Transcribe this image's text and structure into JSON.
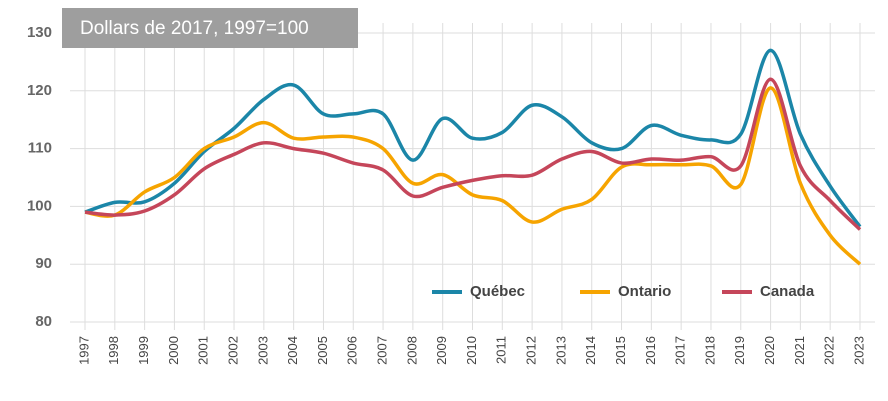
{
  "chart_data": {
    "type": "line",
    "subtitle": "Dollars de 2017, 1997=100",
    "categories": [
      "1997",
      "1998",
      "1999",
      "2000",
      "2001",
      "2002",
      "2003",
      "2004",
      "2005",
      "2006",
      "2007",
      "2008",
      "2009",
      "2010",
      "2011",
      "2012",
      "2013",
      "2014",
      "2015",
      "2016",
      "2017",
      "2018",
      "2019",
      "2020",
      "2021",
      "2022",
      "2023"
    ],
    "series": [
      {
        "name": "Québec",
        "color": "#1b86a8",
        "values": [
          99,
          100.7,
          100.8,
          104,
          109.5,
          113.5,
          118.5,
          121,
          116,
          116,
          116,
          108,
          115.2,
          111.8,
          112.8,
          117.5,
          115.5,
          111,
          110,
          114,
          112.3,
          111.5,
          112.5,
          127,
          112.5,
          103.5,
          96.5
        ]
      },
      {
        "name": "Ontario",
        "color": "#f6a400",
        "values": [
          99,
          98.5,
          102.5,
          105,
          110,
          112,
          114.5,
          111.8,
          112,
          112,
          110,
          104,
          105.5,
          102,
          101,
          97.3,
          99.5,
          101.2,
          106.8,
          107.2,
          107.2,
          107,
          103.8,
          120.5,
          104,
          95,
          90
        ]
      },
      {
        "name": "Canada",
        "color": "#c5465a",
        "values": [
          99,
          98.5,
          99.2,
          102,
          106.5,
          109,
          111,
          110,
          109.2,
          107.5,
          106.3,
          101.8,
          103.3,
          104.5,
          105.3,
          105.4,
          108.2,
          109.5,
          107.5,
          108.2,
          108,
          108.6,
          107,
          122,
          107,
          101,
          96
        ]
      }
    ],
    "ylim": [
      80,
      130
    ],
    "yticks": [
      80,
      90,
      100,
      110,
      120,
      130
    ],
    "grid": true,
    "legend": "bottom-right"
  }
}
